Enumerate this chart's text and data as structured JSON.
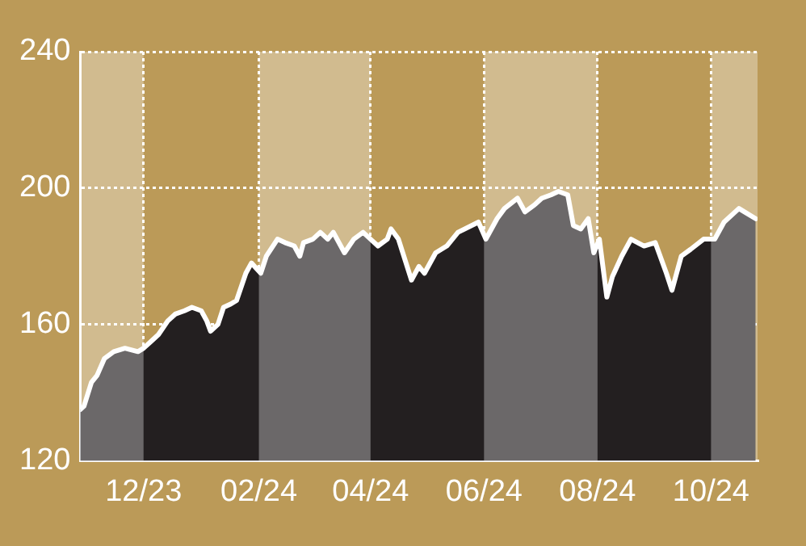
{
  "chart_data": {
    "type": "area",
    "x": [
      "2023-10-28",
      "2023-10-30",
      "2023-11-03",
      "2023-11-06",
      "2023-11-10",
      "2023-11-15",
      "2023-11-21",
      "2023-11-28",
      "2023-12-01",
      "2023-12-05",
      "2023-12-09",
      "2023-12-14",
      "2023-12-18",
      "2023-12-23",
      "2023-12-27",
      "2024-01-01",
      "2024-01-04",
      "2024-01-06",
      "2024-01-10",
      "2024-01-13",
      "2024-01-17",
      "2024-01-20",
      "2024-01-25",
      "2024-01-28",
      "2024-02-02",
      "2024-02-05",
      "2024-02-11",
      "2024-02-15",
      "2024-02-20",
      "2024-02-23",
      "2024-02-25",
      "2024-03-01",
      "2024-03-05",
      "2024-03-09",
      "2024-03-12",
      "2024-03-18",
      "2024-03-23",
      "2024-03-28",
      "2024-04-01",
      "2024-04-05",
      "2024-04-10",
      "2024-04-12",
      "2024-04-16",
      "2024-04-23",
      "2024-04-27",
      "2024-04-30",
      "2024-05-06",
      "2024-05-12",
      "2024-05-18",
      "2024-05-29",
      "2024-06-02",
      "2024-06-08",
      "2024-06-12",
      "2024-06-19",
      "2024-06-23",
      "2024-06-28",
      "2024-07-02",
      "2024-07-07",
      "2024-07-11",
      "2024-07-16",
      "2024-07-19",
      "2024-07-23",
      "2024-07-27",
      "2024-07-30",
      "2024-08-02",
      "2024-08-06",
      "2024-08-09",
      "2024-08-14",
      "2024-08-19",
      "2024-08-26",
      "2024-09-01",
      "2024-09-07",
      "2024-09-10",
      "2024-09-15",
      "2024-09-20",
      "2024-09-27",
      "2024-10-03",
      "2024-10-08",
      "2024-10-16",
      "2024-10-19",
      "2024-10-25"
    ],
    "series": [
      {
        "color": "#231f20",
        "values": [
          135,
          136,
          143,
          145,
          150,
          152,
          153,
          152,
          153,
          155,
          157,
          161,
          163,
          164,
          165,
          164,
          161,
          158,
          160,
          165,
          166,
          167,
          175,
          178,
          175,
          180,
          185,
          184,
          183,
          180,
          184,
          185,
          187,
          185,
          187,
          181,
          185,
          187,
          185,
          183,
          185,
          188,
          185,
          173,
          177,
          175,
          181,
          183,
          187,
          190,
          185,
          191,
          194,
          197,
          193,
          195,
          197,
          198,
          199,
          198,
          189,
          188,
          191,
          181,
          185,
          168,
          174,
          180,
          185,
          183,
          184,
          175,
          170,
          180,
          182,
          185,
          185,
          190,
          194,
          193,
          191
        ]
      }
    ],
    "xlim": [
      "2023-10-28",
      "2024-10-26"
    ],
    "xticks": [
      {
        "value": "2023-12-01",
        "label": "12/23"
      },
      {
        "value": "2024-02-01",
        "label": "02/24"
      },
      {
        "value": "2024-04-01",
        "label": "04/24"
      },
      {
        "value": "2024-06-01",
        "label": "06/24"
      },
      {
        "value": "2024-08-01",
        "label": "08/24"
      },
      {
        "value": "2024-10-01",
        "label": "10/24"
      }
    ],
    "ylim": [
      120,
      240
    ],
    "yticks": [
      120,
      160,
      200,
      240
    ],
    "bands": [
      {
        "axis": "x",
        "from": "2023-10-28",
        "to": "2023-12-01"
      },
      {
        "axis": "x",
        "from": "2024-02-01",
        "to": "2024-04-01"
      },
      {
        "axis": "x",
        "from": "2024-06-01",
        "to": "2024-08-01"
      },
      {
        "axis": "x",
        "from": "2024-10-01",
        "to": "2024-10-26"
      }
    ],
    "grid": true,
    "legend": false,
    "line_style": "solid",
    "marker": "none"
  }
}
